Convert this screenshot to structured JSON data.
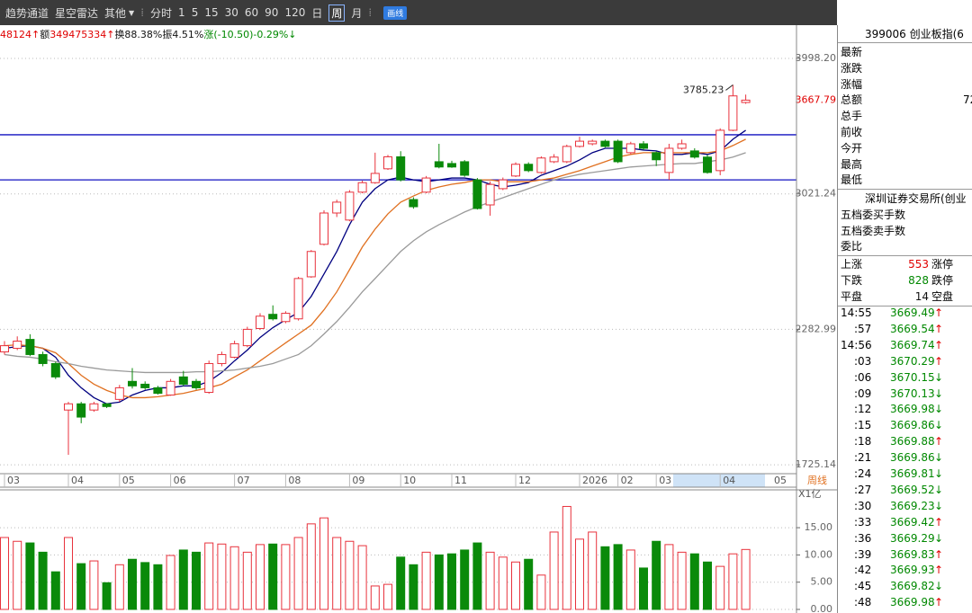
{
  "toolbar": {
    "items": [
      "趋势通道",
      "星空雷达",
      "其他"
    ],
    "periods": [
      "分时",
      "1",
      "5",
      "15",
      "30",
      "60",
      "90",
      "120",
      "日",
      "周",
      "月"
    ],
    "selected_period": 9,
    "button": "画线"
  },
  "info_line": [
    {
      "text": "48124↑",
      "tone": "up"
    },
    {
      "text": "额",
      "tone": "plain"
    },
    {
      "text": "349475334↑",
      "tone": "up"
    },
    {
      "text": "换88.38%",
      "tone": "plain"
    },
    {
      "text": "振4.51%",
      "tone": "plain"
    },
    {
      "text": "涨(-10.50)-0.29%↓",
      "tone": "down"
    }
  ],
  "chart_data": [
    {
      "type": "candlestick",
      "log": true,
      "up_color": "#e8323c",
      "down_color": "#0a8a0a",
      "categories": [
        "03",
        null,
        null,
        null,
        null,
        "04",
        null,
        null,
        null,
        "05",
        null,
        null,
        null,
        "06",
        null,
        null,
        null,
        null,
        "07",
        null,
        null,
        null,
        "08",
        null,
        null,
        null,
        null,
        "09",
        null,
        null,
        null,
        "10",
        null,
        null,
        null,
        "11",
        null,
        null,
        null,
        null,
        "12",
        null,
        null,
        null,
        null,
        "2026",
        null,
        null,
        "02",
        null,
        null,
        "03",
        null,
        null,
        null,
        null,
        "04",
        null,
        null
      ],
      "next_category": "05",
      "period_label": "周线",
      "open": [
        2179,
        2195,
        2236,
        2167,
        2127,
        1932,
        1957,
        1932,
        1957,
        1975,
        2050,
        2038,
        2023,
        1993,
        2069,
        2050,
        2004,
        2127,
        2155,
        2207,
        2287,
        2355,
        2320,
        2333,
        2545,
        2722,
        2904,
        2862,
        3032,
        3092,
        3182,
        3262,
        2986,
        3032,
        3229,
        3217,
        3229,
        3110,
        2953,
        3054,
        3135,
        3212,
        3158,
        3229,
        3229,
        3333,
        3351,
        3369,
        3369,
        3290,
        3351,
        3290,
        3158,
        3320,
        3302,
        3260,
        3170,
        3446,
        3650
      ],
      "high": [
        2228,
        2250,
        2260,
        2180,
        2135,
        1965,
        1965,
        1965,
        1960,
        2035,
        2107,
        2050,
        2031,
        2060,
        2095,
        2060,
        2140,
        2180,
        2230,
        2295,
        2360,
        2399,
        2370,
        2545,
        2690,
        2920,
        2985,
        3045,
        3105,
        3290,
        3275,
        3300,
        3000,
        3135,
        3351,
        3235,
        3240,
        3122,
        3100,
        3125,
        3225,
        3225,
        3265,
        3280,
        3345,
        3400,
        3380,
        3380,
        3380,
        3365,
        3370,
        3300,
        3351,
        3380,
        3320,
        3275,
        3460,
        3785.23,
        3710
      ],
      "low": [
        2167,
        2187,
        2160,
        2115,
        2060,
        1761,
        1880,
        1925,
        1940,
        1965,
        2020,
        2015,
        1995,
        1990,
        2030,
        2015,
        1998,
        2115,
        2150,
        2200,
        2280,
        2325,
        2312,
        2325,
        2540,
        2715,
        2880,
        2855,
        3025,
        3085,
        3175,
        3100,
        2930,
        3025,
        3185,
        3188,
        3130,
        2925,
        2888,
        3045,
        3128,
        3160,
        3150,
        3220,
        3220,
        3325,
        3340,
        3325,
        3220,
        3280,
        3310,
        3200,
        3110,
        3310,
        3250,
        3150,
        3140,
        3440,
        3640
      ],
      "close": [
        2207,
        2228,
        2167,
        2127,
        2069,
        1957,
        1904,
        1957,
        1946,
        2023,
        2031,
        2023,
        2000,
        2050,
        2038,
        2023,
        2127,
        2167,
        2216,
        2283,
        2346,
        2333,
        2360,
        2536,
        2682,
        2904,
        2970,
        3032,
        3092,
        3152,
        3262,
        3110,
        2942,
        3122,
        3194,
        3194,
        3140,
        2931,
        3081,
        3110,
        3212,
        3170,
        3254,
        3260,
        3333,
        3369,
        3369,
        3333,
        3229,
        3351,
        3320,
        3242,
        3320,
        3351,
        3260,
        3158,
        3446,
        3700,
        3667.79
      ],
      "series": [
        {
          "color": "#000080",
          "values": [
            2195,
            2203,
            2207,
            2195,
            2155,
            2076,
            2023,
            1982,
            1957,
            1964,
            1993,
            2012,
            2023,
            2023,
            2031,
            2031,
            2050,
            2088,
            2139,
            2187,
            2245,
            2291,
            2329,
            2364,
            2444,
            2560,
            2682,
            2835,
            2970,
            3054,
            3110,
            3128,
            3110,
            3098,
            3110,
            3122,
            3122,
            3110,
            3082,
            3065,
            3076,
            3093,
            3140,
            3170,
            3200,
            3241,
            3290,
            3320,
            3320,
            3320,
            3308,
            3302,
            3278,
            3278,
            3290,
            3278,
            3302,
            3383,
            3446
          ]
        },
        {
          "color": "#e07020",
          "values": [
            2207,
            2211,
            2207,
            2195,
            2175,
            2127,
            2076,
            2038,
            2012,
            1993,
            1982,
            1982,
            1986,
            1993,
            2000,
            2012,
            2023,
            2038,
            2069,
            2099,
            2139,
            2179,
            2220,
            2261,
            2303,
            2377,
            2467,
            2583,
            2707,
            2809,
            2899,
            2970,
            3008,
            3043,
            3065,
            3082,
            3093,
            3110,
            3110,
            3098,
            3098,
            3098,
            3110,
            3122,
            3146,
            3170,
            3200,
            3229,
            3260,
            3278,
            3290,
            3290,
            3290,
            3290,
            3290,
            3290,
            3302,
            3339,
            3383
          ]
        },
        {
          "color": "#9a9a9a",
          "values": [
            2167,
            2159,
            2155,
            2147,
            2135,
            2127,
            2115,
            2107,
            2099,
            2095,
            2091,
            2088,
            2088,
            2088,
            2088,
            2091,
            2091,
            2095,
            2099,
            2107,
            2115,
            2127,
            2147,
            2167,
            2207,
            2261,
            2320,
            2390,
            2467,
            2536,
            2608,
            2682,
            2742,
            2793,
            2835,
            2872,
            2910,
            2942,
            2970,
            2997,
            3026,
            3054,
            3082,
            3110,
            3128,
            3146,
            3158,
            3170,
            3182,
            3194,
            3200,
            3206,
            3212,
            3217,
            3217,
            3229,
            3241,
            3260,
            3290
          ]
        }
      ],
      "hlines": {
        "color": "#1010c0",
        "values": [
          3414,
          3110
        ]
      },
      "high_label": 3785.23,
      "last_price": 3667.79,
      "ylim": [
        1700,
        4267
      ],
      "yticks": [
        1725.14,
        2282.99,
        3021.24,
        {
          "value": 3998.2,
          "label": "3998.20"
        }
      ],
      "grid": true
    },
    {
      "type": "bar",
      "unit_label": "X1亿",
      "values": [
        13.2,
        12.5,
        12.2,
        10.5,
        6.9,
        13.2,
        8.4,
        8.9,
        4.9,
        8.2,
        9.2,
        8.6,
        8.2,
        9.9,
        10.9,
        10.5,
        12.2,
        12.0,
        11.5,
        10.5,
        11.9,
        12.0,
        11.9,
        13.2,
        15.7,
        16.8,
        13.2,
        12.5,
        11.7,
        4.3,
        4.6,
        9.6,
        8.2,
        10.5,
        10.0,
        10.2,
        10.9,
        12.2,
        10.5,
        9.6,
        8.7,
        9.2,
        6.3,
        14.2,
        18.9,
        12.9,
        14.2,
        11.5,
        11.9,
        10.9,
        7.6,
        12.5,
        11.9,
        10.5,
        10.2,
        8.7,
        7.9,
        10.2,
        11.0
      ],
      "ylim": [
        0,
        19.8
      ],
      "yticks": [
        {
          "value": 0,
          "label": "0.00"
        },
        {
          "value": 5,
          "label": "5.00"
        },
        {
          "value": 10,
          "label": "10.00"
        },
        {
          "value": 15,
          "label": "15.00"
        }
      ],
      "grid": true
    }
  ],
  "side_panel": {
    "header": "399006 创业板指(6",
    "quote_rows": [
      {
        "label": "最新"
      },
      {
        "label": "涨跌"
      },
      {
        "label": "涨幅"
      },
      {
        "label": "总额",
        "value": "72"
      },
      {
        "label": "总手"
      },
      {
        "label": "前收"
      },
      {
        "label": "今开"
      },
      {
        "label": "最高"
      },
      {
        "label": "最低"
      }
    ],
    "exchange": "深圳证券交易所(创业",
    "order_rows": [
      "五档委买手数",
      "五档委卖手数",
      "委比"
    ],
    "breadth": [
      {
        "label": "上涨",
        "count": 553,
        "tag": "涨停"
      },
      {
        "label": "下跌",
        "count": 828,
        "tag": "跌停"
      },
      {
        "label": "平盘",
        "count": 14,
        "tag": "空盘"
      }
    ],
    "ticks": [
      {
        "time": "14:55",
        "price": "3669.49",
        "arrow": "↑"
      },
      {
        "time": ":57",
        "price": "3669.54",
        "arrow": "↑"
      },
      {
        "time": "14:56",
        "price": "3669.74",
        "arrow": "↑"
      },
      {
        "time": ":03",
        "price": "3670.29",
        "arrow": "↑"
      },
      {
        "time": ":06",
        "price": "3670.15",
        "arrow": "↓"
      },
      {
        "time": ":09",
        "price": "3670.13",
        "arrow": "↓"
      },
      {
        "time": ":12",
        "price": "3669.98",
        "arrow": "↓"
      },
      {
        "time": ":15",
        "price": "3669.86",
        "arrow": "↓"
      },
      {
        "time": ":18",
        "price": "3669.88",
        "arrow": "↑"
      },
      {
        "time": ":21",
        "price": "3669.86",
        "arrow": "↓"
      },
      {
        "time": ":24",
        "price": "3669.81",
        "arrow": "↓"
      },
      {
        "time": ":27",
        "price": "3669.52",
        "arrow": "↓"
      },
      {
        "time": ":30",
        "price": "3669.23",
        "arrow": "↓"
      },
      {
        "time": ":33",
        "price": "3669.42",
        "arrow": "↑"
      },
      {
        "time": ":36",
        "price": "3669.29",
        "arrow": "↓"
      },
      {
        "time": ":39",
        "price": "3669.83",
        "arrow": "↑"
      },
      {
        "time": ":42",
        "price": "3669.93",
        "arrow": "↑"
      },
      {
        "time": ":45",
        "price": "3669.82",
        "arrow": "↓"
      },
      {
        "time": ":48",
        "price": "3669.98",
        "arrow": "↑"
      }
    ]
  }
}
